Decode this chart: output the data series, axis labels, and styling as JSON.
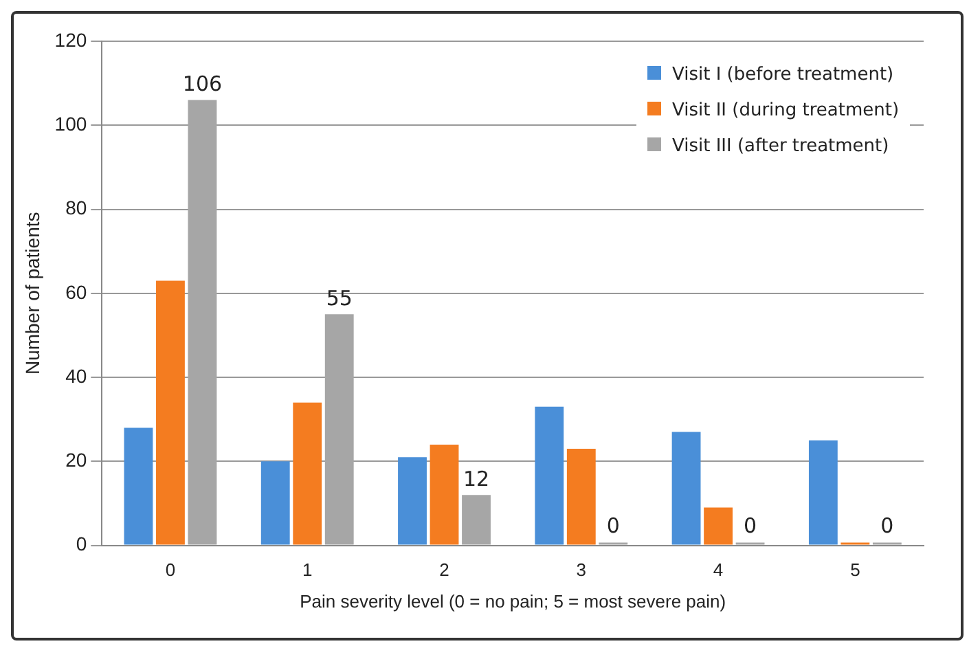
{
  "chart_data": {
    "type": "bar",
    "xlabel": "Pain severity level (0 = no pain; 5 = most severe pain)",
    "ylabel": "Number of patients",
    "categories": [
      "0",
      "1",
      "2",
      "3",
      "4",
      "5"
    ],
    "series": [
      {
        "name": "Visit I (before treatment)",
        "color": "#4a8fd8",
        "values": [
          28,
          20,
          21,
          33,
          27,
          25
        ]
      },
      {
        "name": "Visit II (during treatment)",
        "color": "#f47c20",
        "values": [
          63,
          34,
          24,
          23,
          9,
          0
        ]
      },
      {
        "name": "Visit III (after treatment)",
        "color": "#a6a6a6",
        "values": [
          106,
          55,
          12,
          0,
          0,
          0
        ],
        "value_labels": [
          "106",
          "55",
          "12",
          "0",
          "0",
          "0"
        ]
      }
    ],
    "ylim": [
      0,
      120
    ],
    "yticks": [
      0,
      20,
      40,
      60,
      80,
      100,
      120
    ],
    "grid": "y",
    "legend": "top right"
  }
}
